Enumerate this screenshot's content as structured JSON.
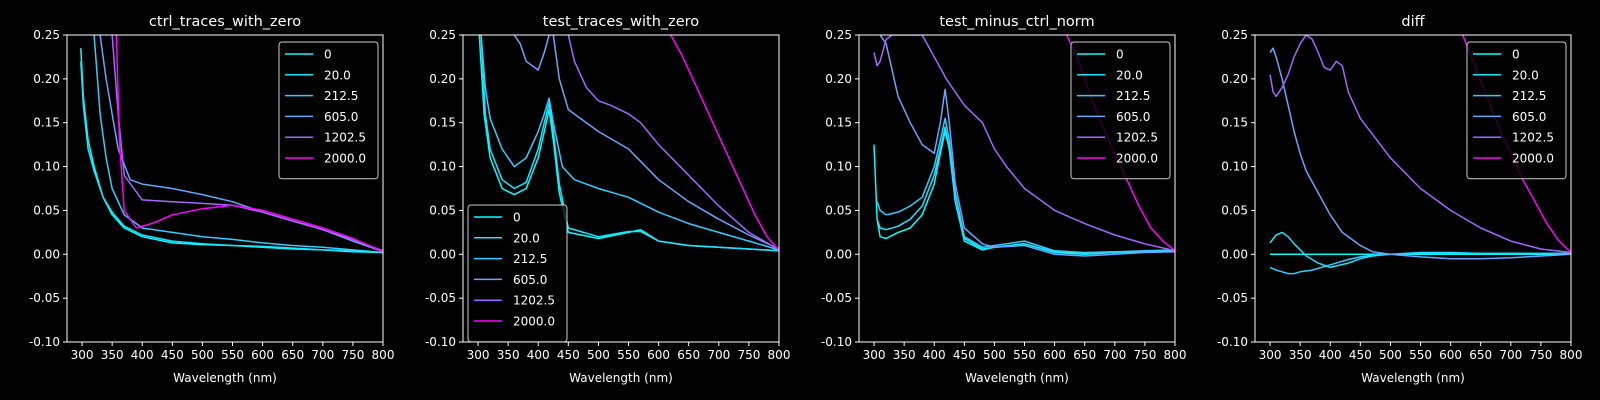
{
  "figure": {
    "background": "#000000",
    "foreground": "#ffffff"
  },
  "series_colors": [
    "#00ffff",
    "#1ae5ff",
    "#33ccff",
    "#66a6ff",
    "#a366ff",
    "#ff00ff"
  ],
  "chart_data": [
    {
      "type": "line",
      "title": "ctrl_traces_with_zero",
      "xlabel": "Wavelength (nm)",
      "ylabel": "",
      "xlim": [
        275,
        800
      ],
      "ylim": [
        -0.1,
        0.25
      ],
      "xticks": [
        300,
        350,
        400,
        450,
        500,
        550,
        600,
        650,
        700,
        750,
        800
      ],
      "yticks": [
        -0.1,
        -0.05,
        0.0,
        0.05,
        0.1,
        0.15,
        0.2,
        0.25
      ],
      "legend": "upper right",
      "grid": false,
      "series": [
        {
          "name": "0",
          "x": [
            298,
            302,
            310,
            320,
            335,
            350,
            370,
            400,
            450,
            500,
            550,
            600,
            650,
            700,
            750,
            800
          ],
          "y": [
            0.235,
            0.18,
            0.13,
            0.1,
            0.065,
            0.045,
            0.03,
            0.02,
            0.013,
            0.011,
            0.01,
            0.008,
            0.006,
            0.005,
            0.003,
            0.002
          ]
        },
        {
          "name": "20.0",
          "x": [
            298,
            302,
            310,
            320,
            335,
            350,
            370,
            400,
            450,
            500,
            550,
            600,
            650,
            700,
            750,
            800
          ],
          "y": [
            0.22,
            0.17,
            0.12,
            0.095,
            0.065,
            0.048,
            0.032,
            0.022,
            0.015,
            0.012,
            0.01,
            0.009,
            0.007,
            0.005,
            0.004,
            0.002
          ]
        },
        {
          "name": "212.5",
          "x": [
            320,
            330,
            340,
            350,
            370,
            400,
            450,
            500,
            550,
            600,
            650,
            700,
            750,
            800
          ],
          "y": [
            0.25,
            0.16,
            0.11,
            0.075,
            0.045,
            0.03,
            0.025,
            0.02,
            0.017,
            0.013,
            0.01,
            0.008,
            0.005,
            0.002
          ]
        },
        {
          "name": "605.0",
          "x": [
            330,
            340,
            350,
            360,
            380,
            400,
            450,
            500,
            550,
            600,
            650,
            700,
            750,
            800
          ],
          "y": [
            0.25,
            0.2,
            0.16,
            0.12,
            0.085,
            0.08,
            0.075,
            0.068,
            0.06,
            0.048,
            0.038,
            0.028,
            0.015,
            0.003
          ]
        },
        {
          "name": "1202.5",
          "x": [
            350,
            360,
            370,
            400,
            450,
            500,
            550,
            600,
            650,
            700,
            750,
            800
          ],
          "y": [
            0.25,
            0.16,
            0.09,
            0.062,
            0.06,
            0.058,
            0.056,
            0.048,
            0.038,
            0.028,
            0.017,
            0.004
          ]
        },
        {
          "name": "2000.0",
          "x": [
            357,
            362,
            370,
            390,
            420,
            450,
            500,
            550,
            600,
            650,
            700,
            750,
            800
          ],
          "y": [
            0.25,
            0.13,
            0.05,
            0.03,
            0.036,
            0.045,
            0.052,
            0.056,
            0.05,
            0.04,
            0.03,
            0.018,
            0.003
          ]
        }
      ]
    },
    {
      "type": "line",
      "title": "test_traces_with_zero",
      "xlabel": "Wavelength (nm)",
      "ylabel": "",
      "xlim": [
        275,
        800
      ],
      "ylim": [
        -0.1,
        0.25
      ],
      "xticks": [
        300,
        350,
        400,
        450,
        500,
        550,
        600,
        650,
        700,
        750,
        800
      ],
      "yticks": [
        -0.1,
        -0.05,
        0.0,
        0.05,
        0.1,
        0.15,
        0.2,
        0.25
      ],
      "legend": "lower left",
      "grid": false,
      "series": [
        {
          "name": "0",
          "x": [
            302,
            310,
            320,
            340,
            360,
            380,
            400,
            410,
            418,
            425,
            435,
            450,
            500,
            550,
            570,
            600,
            650,
            700,
            750,
            800
          ],
          "y": [
            0.25,
            0.16,
            0.11,
            0.075,
            0.068,
            0.075,
            0.11,
            0.14,
            0.165,
            0.13,
            0.07,
            0.025,
            0.018,
            0.025,
            0.028,
            0.015,
            0.01,
            0.008,
            0.006,
            0.004
          ]
        },
        {
          "name": "20.0",
          "x": [
            305,
            312,
            320,
            340,
            360,
            380,
            400,
            410,
            418,
            425,
            435,
            450,
            500,
            550,
            570,
            600,
            650,
            700,
            750,
            800
          ],
          "y": [
            0.25,
            0.16,
            0.12,
            0.085,
            0.075,
            0.082,
            0.12,
            0.15,
            0.172,
            0.14,
            0.08,
            0.03,
            0.02,
            0.026,
            0.026,
            0.015,
            0.01,
            0.008,
            0.006,
            0.004
          ]
        },
        {
          "name": "212.5",
          "x": [
            305,
            312,
            320,
            340,
            360,
            380,
            400,
            410,
            418,
            425,
            440,
            460,
            500,
            550,
            600,
            650,
            700,
            750,
            800
          ],
          "y": [
            0.25,
            0.19,
            0.155,
            0.12,
            0.1,
            0.11,
            0.14,
            0.16,
            0.178,
            0.15,
            0.1,
            0.085,
            0.075,
            0.065,
            0.048,
            0.035,
            0.025,
            0.015,
            0.005
          ]
        },
        {
          "name": "605.0",
          "x": [
            360,
            370,
            380,
            400,
            410,
            418,
            425,
            435,
            450,
            500,
            550,
            600,
            650,
            700,
            750,
            800
          ],
          "y": [
            0.25,
            0.24,
            0.22,
            0.21,
            0.23,
            0.25,
            0.25,
            0.2,
            0.165,
            0.14,
            0.12,
            0.085,
            0.06,
            0.04,
            0.022,
            0.006
          ]
        },
        {
          "name": "1202.5",
          "x": [
            450,
            460,
            480,
            500,
            520,
            550,
            570,
            600,
            650,
            700,
            750,
            800
          ],
          "y": [
            0.25,
            0.22,
            0.19,
            0.175,
            0.17,
            0.16,
            0.15,
            0.125,
            0.09,
            0.055,
            0.025,
            0.005
          ]
        },
        {
          "name": "2000.0",
          "x": [
            620,
            640,
            660,
            680,
            700,
            720,
            740,
            760,
            780,
            800
          ],
          "y": [
            0.25,
            0.225,
            0.195,
            0.165,
            0.135,
            0.105,
            0.075,
            0.045,
            0.02,
            0.004
          ]
        }
      ]
    },
    {
      "type": "line",
      "title": "test_minus_ctrl_norm",
      "xlabel": "Wavelength (nm)",
      "ylabel": "",
      "xlim": [
        275,
        800
      ],
      "ylim": [
        -0.1,
        0.25
      ],
      "xticks": [
        300,
        350,
        400,
        450,
        500,
        550,
        600,
        650,
        700,
        750,
        800
      ],
      "yticks": [
        -0.1,
        -0.05,
        0.0,
        0.05,
        0.1,
        0.15,
        0.2,
        0.25
      ],
      "legend": "upper right",
      "grid": false,
      "series": [
        {
          "name": "0",
          "x": [
            300,
            305,
            310,
            320,
            340,
            360,
            380,
            400,
            410,
            418,
            425,
            435,
            450,
            480,
            500,
            550,
            600,
            650,
            700,
            750,
            800
          ],
          "y": [
            0.125,
            0.04,
            0.02,
            0.018,
            0.025,
            0.03,
            0.045,
            0.08,
            0.115,
            0.14,
            0.12,
            0.06,
            0.015,
            0.005,
            0.008,
            0.012,
            0.002,
            0.0,
            0.002,
            0.003,
            0.004
          ]
        },
        {
          "name": "20.0",
          "x": [
            305,
            310,
            320,
            340,
            360,
            380,
            400,
            410,
            418,
            425,
            435,
            450,
            480,
            500,
            550,
            600,
            650,
            700,
            750,
            800
          ],
          "y": [
            0.04,
            0.03,
            0.028,
            0.032,
            0.04,
            0.055,
            0.09,
            0.12,
            0.145,
            0.12,
            0.06,
            0.018,
            0.006,
            0.008,
            0.012,
            0.003,
            0.001,
            0.002,
            0.003,
            0.004
          ]
        },
        {
          "name": "212.5",
          "x": [
            305,
            310,
            320,
            340,
            360,
            380,
            400,
            410,
            418,
            425,
            435,
            450,
            480,
            500,
            550,
            600,
            650,
            700,
            750,
            800
          ],
          "y": [
            0.06,
            0.05,
            0.045,
            0.048,
            0.055,
            0.065,
            0.1,
            0.13,
            0.155,
            0.13,
            0.07,
            0.02,
            0.008,
            0.01,
            0.015,
            0.004,
            0.002,
            0.003,
            0.004,
            0.005
          ]
        },
        {
          "name": "605.0",
          "x": [
            310,
            320,
            340,
            360,
            380,
            400,
            410,
            418,
            425,
            435,
            450,
            480,
            500,
            550,
            600,
            650,
            700,
            750,
            800
          ],
          "y": [
            0.25,
            0.24,
            0.18,
            0.15,
            0.125,
            0.115,
            0.15,
            0.188,
            0.15,
            0.08,
            0.03,
            0.012,
            0.008,
            0.01,
            0.0,
            -0.002,
            0.0,
            0.002,
            0.003
          ]
        },
        {
          "name": "1202.5",
          "x": [
            300,
            305,
            310,
            320,
            330,
            340,
            350,
            380,
            420,
            450,
            480,
            500,
            520,
            550,
            600,
            650,
            700,
            750,
            800
          ],
          "y": [
            0.23,
            0.215,
            0.22,
            0.245,
            0.25,
            0.25,
            0.25,
            0.25,
            0.2,
            0.17,
            0.15,
            0.12,
            0.1,
            0.075,
            0.05,
            0.035,
            0.022,
            0.012,
            0.004
          ]
        },
        {
          "name": "2000.0",
          "x": [
            620,
            640,
            660,
            680,
            700,
            720,
            740,
            760,
            780,
            800
          ],
          "y": [
            0.25,
            0.22,
            0.18,
            0.145,
            0.115,
            0.085,
            0.055,
            0.03,
            0.015,
            0.004
          ]
        }
      ]
    },
    {
      "type": "line",
      "title": "diff",
      "xlabel": "Wavelength (nm)",
      "ylabel": "",
      "xlim": [
        275,
        800
      ],
      "ylim": [
        -0.1,
        0.25
      ],
      "xticks": [
        300,
        350,
        400,
        450,
        500,
        550,
        600,
        650,
        700,
        750,
        800
      ],
      "yticks": [
        -0.1,
        -0.05,
        0.0,
        0.05,
        0.1,
        0.15,
        0.2,
        0.25
      ],
      "legend": "upper right",
      "grid": false,
      "series": [
        {
          "name": "0",
          "x": [
            300,
            800
          ],
          "y": [
            0.0,
            0.0
          ]
        },
        {
          "name": "20.0",
          "x": [
            300,
            310,
            320,
            330,
            340,
            350,
            360,
            380,
            400,
            430,
            450,
            470,
            500,
            550,
            600,
            650,
            700,
            750,
            800
          ],
          "y": [
            0.013,
            0.022,
            0.025,
            0.02,
            0.012,
            0.005,
            -0.002,
            -0.01,
            -0.015,
            -0.01,
            -0.005,
            -0.002,
            0.0,
            0.002,
            0.002,
            0.001,
            0.001,
            0.001,
            0.001
          ]
        },
        {
          "name": "212.5",
          "x": [
            300,
            310,
            320,
            330,
            340,
            350,
            370,
            400,
            430,
            450,
            470,
            500,
            550,
            600,
            650,
            700,
            750,
            800
          ],
          "y": [
            -0.015,
            -0.018,
            -0.02,
            -0.022,
            -0.022,
            -0.02,
            -0.018,
            -0.012,
            -0.006,
            -0.003,
            -0.001,
            0.0,
            0.001,
            0.001,
            0.001,
            0.001,
            0.001,
            0.001
          ]
        },
        {
          "name": "605.0",
          "x": [
            300,
            305,
            310,
            320,
            330,
            340,
            350,
            360,
            380,
            400,
            420,
            450,
            470,
            500,
            550,
            600,
            650,
            700,
            750,
            800
          ],
          "y": [
            0.23,
            0.235,
            0.225,
            0.2,
            0.17,
            0.14,
            0.115,
            0.095,
            0.07,
            0.045,
            0.025,
            0.01,
            0.003,
            0.0,
            -0.003,
            -0.005,
            -0.005,
            -0.004,
            -0.002,
            0.0
          ]
        },
        {
          "name": "1202.5",
          "x": [
            300,
            305,
            310,
            320,
            330,
            340,
            350,
            360,
            370,
            380,
            390,
            400,
            410,
            420,
            430,
            450,
            500,
            550,
            600,
            650,
            700,
            750,
            800
          ],
          "y": [
            0.205,
            0.185,
            0.18,
            0.19,
            0.205,
            0.225,
            0.24,
            0.25,
            0.245,
            0.23,
            0.213,
            0.21,
            0.22,
            0.215,
            0.185,
            0.155,
            0.11,
            0.075,
            0.05,
            0.03,
            0.015,
            0.006,
            0.002
          ]
        },
        {
          "name": "2000.0",
          "x": [
            620,
            640,
            660,
            680,
            700,
            720,
            740,
            760,
            780,
            800
          ],
          "y": [
            0.25,
            0.215,
            0.18,
            0.145,
            0.115,
            0.085,
            0.06,
            0.035,
            0.015,
            0.002
          ]
        }
      ]
    }
  ]
}
